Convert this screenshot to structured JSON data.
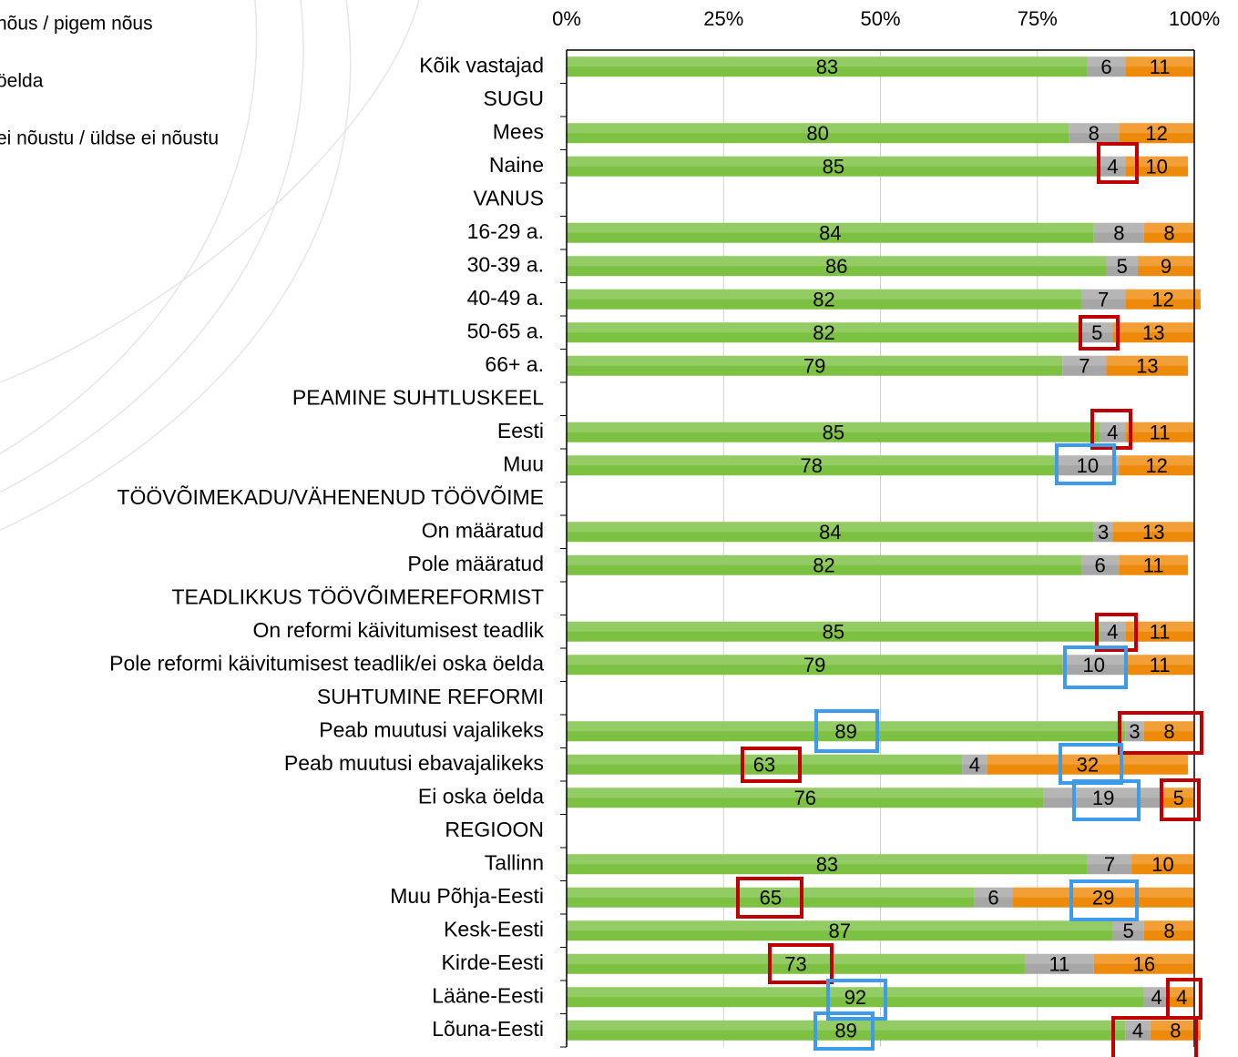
{
  "chart_data": {
    "type": "stacked_bar_horizontal",
    "categories": [
      "Kõik vastajad",
      "SUGU",
      "Mees",
      "Naine",
      "VANUS",
      "16-29 a.",
      "30-39 a.",
      "40-49 a.",
      "50-65 a.",
      "66+ a.",
      "PEAMINE SUHTLUSKEEL",
      "Eesti",
      "Muu",
      "TÖÖVÕIMEKADU/VÄHENENUD TÖÖVÕIME",
      "On määratud",
      "Pole määratud",
      "TEADLIKKUS TÖÖVÕIMEREFORMIST",
      "On reformi käivitumisest teadlik",
      "Pole reformi käivitumisest teadlik/ei oska öelda",
      "SUHTUMINE REFORMI",
      "Peab muutusi vajalikeks",
      "Peab muutusi ebavajalikeks",
      "Ei oska öelda",
      "REGIOON",
      "Tallinn",
      "Muu Põhja-Eesti",
      "Kesk-Eesti",
      "Kirde-Eesti",
      "Lääne-Eesti",
      "Lõuna-Eesti"
    ],
    "series": [
      {
        "name": "nõus / pigem nõus",
        "color": "#7cc142",
        "values": [
          83,
          null,
          80,
          85,
          null,
          84,
          86,
          82,
          82,
          79,
          null,
          85,
          78,
          null,
          84,
          82,
          null,
          85,
          79,
          null,
          89,
          63,
          76,
          null,
          83,
          65,
          87,
          73,
          92,
          89
        ]
      },
      {
        "name": "öelda",
        "color": "#a6a6a6",
        "values": [
          6,
          null,
          8,
          4,
          null,
          8,
          5,
          7,
          5,
          7,
          null,
          4,
          10,
          null,
          3,
          6,
          null,
          4,
          10,
          null,
          3,
          4,
          19,
          null,
          7,
          6,
          5,
          11,
          4,
          4
        ]
      },
      {
        "name": "ei nõustu / üldse ei nõustu",
        "color": "#ee8a0a",
        "values": [
          11,
          null,
          12,
          10,
          null,
          8,
          9,
          12,
          13,
          13,
          null,
          11,
          12,
          null,
          13,
          11,
          null,
          11,
          11,
          null,
          8,
          32,
          5,
          null,
          10,
          29,
          8,
          16,
          4,
          8
        ]
      }
    ],
    "xlim": [
      0,
      100
    ],
    "xticks": [
      {
        "value": 0,
        "label": "0%"
      },
      {
        "value": 25,
        "label": "25%"
      },
      {
        "value": 50,
        "label": "50%"
      },
      {
        "value": 75,
        "label": "75%"
      },
      {
        "value": 100,
        "label": "100%"
      }
    ],
    "grid": true
  }
}
